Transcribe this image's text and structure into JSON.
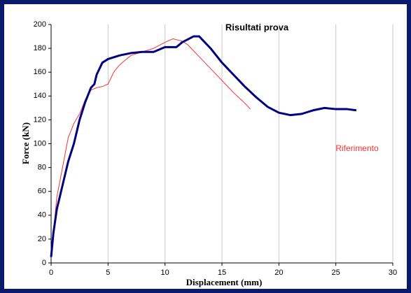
{
  "chart_data": {
    "type": "line",
    "title": "Risultati prova",
    "xlabel": "Displacement (mm)",
    "ylabel": "Force (kN)",
    "xlim": [
      0,
      30
    ],
    "xticks": [
      0,
      5,
      10,
      15,
      20,
      25,
      30
    ],
    "ylim": [
      0,
      200
    ],
    "yticks": [
      0,
      20,
      40,
      60,
      80,
      100,
      120,
      140,
      160,
      180,
      200
    ],
    "grid": "x",
    "series": [
      {
        "color": "#000080",
        "x": [
          0,
          0.2,
          0.5,
          1,
          1.5,
          2,
          2.5,
          3,
          3.5,
          3.8,
          4,
          4.5,
          5,
          6,
          7,
          8,
          9,
          10,
          11,
          11.5,
          12.5,
          13,
          14,
          15,
          16,
          17,
          18,
          19,
          20,
          21,
          22,
          23,
          24,
          25,
          26,
          26.8
        ],
        "values": [
          5,
          25,
          45,
          65,
          85,
          100,
          120,
          135,
          147,
          150,
          158,
          168,
          171,
          174,
          176,
          177,
          177,
          181,
          181,
          185,
          190,
          190,
          180,
          168,
          158,
          148,
          139,
          131,
          126,
          124,
          125,
          128,
          130,
          129,
          129,
          128
        ]
      },
      {
        "name": "Riferimento",
        "color": "#ff3030",
        "x": [
          0,
          0.5,
          1,
          1.5,
          2,
          2.5,
          3,
          3.5,
          4,
          4.5,
          5,
          5.5,
          6,
          6.5,
          7,
          8,
          9,
          10,
          10.7,
          11.5,
          12,
          13,
          14,
          15,
          16,
          17,
          17.5
        ],
        "values": [
          5,
          55,
          80,
          105,
          117,
          125,
          137,
          145,
          147,
          148,
          150,
          160,
          166,
          170,
          174,
          177,
          180,
          185,
          188,
          186,
          183,
          173,
          163,
          153,
          143,
          134,
          129
        ]
      }
    ]
  }
}
